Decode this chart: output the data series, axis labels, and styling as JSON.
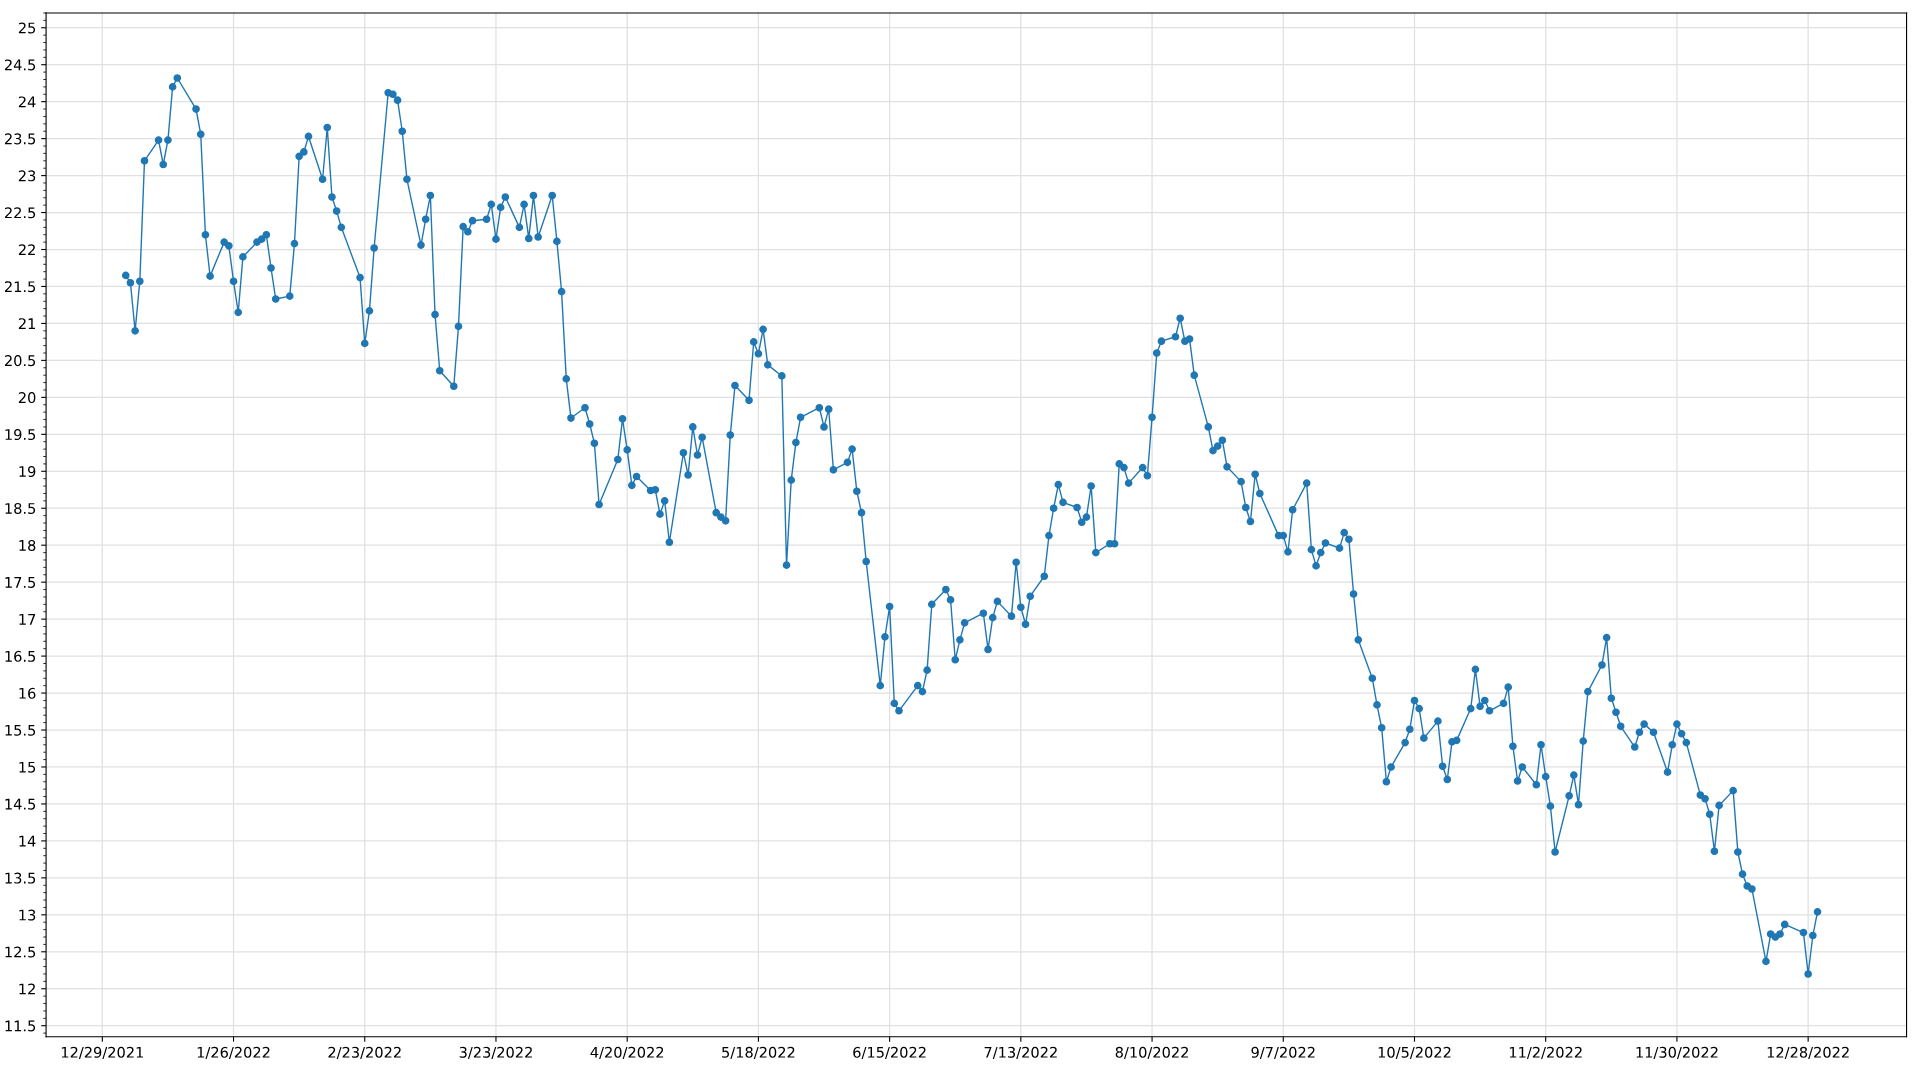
{
  "chart_data": {
    "type": "line",
    "marker": "circle",
    "line_style": "solid",
    "grid": true,
    "x": [
      "2022-01-03",
      "2022-01-04",
      "2022-01-05",
      "2022-01-06",
      "2022-01-07",
      "2022-01-10",
      "2022-01-11",
      "2022-01-12",
      "2022-01-13",
      "2022-01-14",
      "2022-01-18",
      "2022-01-19",
      "2022-01-20",
      "2022-01-21",
      "2022-01-24",
      "2022-01-25",
      "2022-01-26",
      "2022-01-27",
      "2022-01-28",
      "2022-01-31",
      "2022-02-01",
      "2022-02-02",
      "2022-02-03",
      "2022-02-04",
      "2022-02-07",
      "2022-02-08",
      "2022-02-09",
      "2022-02-10",
      "2022-02-11",
      "2022-02-14",
      "2022-02-15",
      "2022-02-16",
      "2022-02-17",
      "2022-02-18",
      "2022-02-22",
      "2022-02-23",
      "2022-02-24",
      "2022-02-25",
      "2022-02-28",
      "2022-03-01",
      "2022-03-02",
      "2022-03-03",
      "2022-03-04",
      "2022-03-07",
      "2022-03-08",
      "2022-03-09",
      "2022-03-10",
      "2022-03-11",
      "2022-03-14",
      "2022-03-15",
      "2022-03-16",
      "2022-03-17",
      "2022-03-18",
      "2022-03-21",
      "2022-03-22",
      "2022-03-23",
      "2022-03-24",
      "2022-03-25",
      "2022-03-28",
      "2022-03-29",
      "2022-03-30",
      "2022-03-31",
      "2022-04-01",
      "2022-04-04",
      "2022-04-05",
      "2022-04-06",
      "2022-04-07",
      "2022-04-08",
      "2022-04-11",
      "2022-04-12",
      "2022-04-13",
      "2022-04-14",
      "2022-04-18",
      "2022-04-19",
      "2022-04-20",
      "2022-04-21",
      "2022-04-22",
      "2022-04-25",
      "2022-04-26",
      "2022-04-27",
      "2022-04-28",
      "2022-04-29",
      "2022-05-02",
      "2022-05-03",
      "2022-05-04",
      "2022-05-05",
      "2022-05-06",
      "2022-05-09",
      "2022-05-10",
      "2022-05-11",
      "2022-05-12",
      "2022-05-13",
      "2022-05-16",
      "2022-05-17",
      "2022-05-18",
      "2022-05-19",
      "2022-05-20",
      "2022-05-23",
      "2022-05-24",
      "2022-05-25",
      "2022-05-26",
      "2022-05-27",
      "2022-05-31",
      "2022-06-01",
      "2022-06-02",
      "2022-06-03",
      "2022-06-06",
      "2022-06-07",
      "2022-06-08",
      "2022-06-09",
      "2022-06-10",
      "2022-06-13",
      "2022-06-14",
      "2022-06-15",
      "2022-06-16",
      "2022-06-17",
      "2022-06-21",
      "2022-06-22",
      "2022-06-23",
      "2022-06-24",
      "2022-06-27",
      "2022-06-28",
      "2022-06-29",
      "2022-06-30",
      "2022-07-01",
      "2022-07-05",
      "2022-07-06",
      "2022-07-07",
      "2022-07-08",
      "2022-07-11",
      "2022-07-12",
      "2022-07-13",
      "2022-07-14",
      "2022-07-15",
      "2022-07-18",
      "2022-07-19",
      "2022-07-20",
      "2022-07-21",
      "2022-07-22",
      "2022-07-25",
      "2022-07-26",
      "2022-07-27",
      "2022-07-28",
      "2022-07-29",
      "2022-08-01",
      "2022-08-02",
      "2022-08-03",
      "2022-08-04",
      "2022-08-05",
      "2022-08-08",
      "2022-08-09",
      "2022-08-10",
      "2022-08-11",
      "2022-08-12",
      "2022-08-15",
      "2022-08-16",
      "2022-08-17",
      "2022-08-18",
      "2022-08-19",
      "2022-08-22",
      "2022-08-23",
      "2022-08-24",
      "2022-08-25",
      "2022-08-26",
      "2022-08-29",
      "2022-08-30",
      "2022-08-31",
      "2022-09-01",
      "2022-09-02",
      "2022-09-06",
      "2022-09-07",
      "2022-09-08",
      "2022-09-09",
      "2022-09-12",
      "2022-09-13",
      "2022-09-14",
      "2022-09-15",
      "2022-09-16",
      "2022-09-19",
      "2022-09-20",
      "2022-09-21",
      "2022-09-22",
      "2022-09-23",
      "2022-09-26",
      "2022-09-27",
      "2022-09-28",
      "2022-09-29",
      "2022-09-30",
      "2022-10-03",
      "2022-10-04",
      "2022-10-05",
      "2022-10-06",
      "2022-10-07",
      "2022-10-10",
      "2022-10-11",
      "2022-10-12",
      "2022-10-13",
      "2022-10-14",
      "2022-10-17",
      "2022-10-18",
      "2022-10-19",
      "2022-10-20",
      "2022-10-21",
      "2022-10-24",
      "2022-10-25",
      "2022-10-26",
      "2022-10-27",
      "2022-10-28",
      "2022-10-31",
      "2022-11-01",
      "2022-11-02",
      "2022-11-03",
      "2022-11-04",
      "2022-11-07",
      "2022-11-08",
      "2022-11-09",
      "2022-11-10",
      "2022-11-11",
      "2022-11-14",
      "2022-11-15",
      "2022-11-16",
      "2022-11-17",
      "2022-11-18",
      "2022-11-21",
      "2022-11-22",
      "2022-11-23",
      "2022-11-25",
      "2022-11-28",
      "2022-11-29",
      "2022-11-30",
      "2022-12-01",
      "2022-12-02",
      "2022-12-05",
      "2022-12-06",
      "2022-12-07",
      "2022-12-08",
      "2022-12-09",
      "2022-12-12",
      "2022-12-13",
      "2022-12-14",
      "2022-12-15",
      "2022-12-16",
      "2022-12-19",
      "2022-12-20",
      "2022-12-21",
      "2022-12-22",
      "2022-12-23",
      "2022-12-27",
      "2022-12-28",
      "2022-12-29",
      "2022-12-30"
    ],
    "series": [
      {
        "color": "#1f77b4",
        "values": [
          21.65,
          21.55,
          20.9,
          21.57,
          23.2,
          23.48,
          23.15,
          23.48,
          24.2,
          24.32,
          23.9,
          23.56,
          22.2,
          21.64,
          22.1,
          22.05,
          21.57,
          21.15,
          21.9,
          22.1,
          22.14,
          22.2,
          21.75,
          21.33,
          21.37,
          22.08,
          23.26,
          23.32,
          23.53,
          22.95,
          23.65,
          22.71,
          22.52,
          22.3,
          21.62,
          20.73,
          21.17,
          22.02,
          24.12,
          24.1,
          24.02,
          23.6,
          22.95,
          22.06,
          22.41,
          22.73,
          21.12,
          20.36,
          20.15,
          20.96,
          22.31,
          22.24,
          22.39,
          22.41,
          22.61,
          22.14,
          22.57,
          22.71,
          22.3,
          22.61,
          22.15,
          22.73,
          22.17,
          22.73,
          22.11,
          21.43,
          20.25,
          19.72,
          19.86,
          19.64,
          19.38,
          18.55,
          19.16,
          19.71,
          19.29,
          18.81,
          18.93,
          18.74,
          18.75,
          18.42,
          18.6,
          18.04,
          19.25,
          18.95,
          19.6,
          19.22,
          19.46,
          18.44,
          18.38,
          18.33,
          19.49,
          20.16,
          19.96,
          20.75,
          20.59,
          20.92,
          20.44,
          20.29,
          17.73,
          18.88,
          19.39,
          19.73,
          19.86,
          19.6,
          19.84,
          19.02,
          19.12,
          19.3,
          18.73,
          18.44,
          17.78,
          16.1,
          16.76,
          17.17,
          15.86,
          15.76,
          16.1,
          16.02,
          16.31,
          17.2,
          17.4,
          17.26,
          16.45,
          16.72,
          16.95,
          17.08,
          16.59,
          17.02,
          17.24,
          17.04,
          17.77,
          17.16,
          16.93,
          17.31,
          17.58,
          18.13,
          18.5,
          18.82,
          18.58,
          18.51,
          18.31,
          18.38,
          18.8,
          17.9,
          18.02,
          18.02,
          19.1,
          19.05,
          18.84,
          19.05,
          18.94,
          19.73,
          20.6,
          20.76,
          20.82,
          21.07,
          20.76,
          20.79,
          20.3,
          19.6,
          19.28,
          19.34,
          19.42,
          19.06,
          18.86,
          18.51,
          18.32,
          18.96,
          18.7,
          18.13,
          18.13,
          17.91,
          18.48,
          18.84,
          17.94,
          17.72,
          17.9,
          18.03,
          17.96,
          18.17,
          18.08,
          17.34,
          16.72,
          16.2,
          15.84,
          15.53,
          14.8,
          15.0,
          15.33,
          15.51,
          15.9,
          15.79,
          15.39,
          15.62,
          15.01,
          14.83,
          15.34,
          15.36,
          15.79,
          16.32,
          15.82,
          15.9,
          15.76,
          15.86,
          16.08,
          15.28,
          14.81,
          15.0,
          14.76,
          15.3,
          14.87,
          14.47,
          13.85,
          14.61,
          14.89,
          14.49,
          15.35,
          16.02,
          16.38,
          16.75,
          15.93,
          15.74,
          15.55,
          15.27,
          15.47,
          15.58,
          15.47,
          14.93,
          15.3,
          15.58,
          15.45,
          15.33,
          14.62,
          14.57,
          14.36,
          13.86,
          14.48,
          14.68,
          13.85,
          13.55,
          13.39,
          13.35,
          12.37,
          12.74,
          12.7,
          12.74,
          12.87,
          12.76,
          12.2,
          12.72,
          13.04
        ]
      }
    ],
    "xlim": [
      "2021-12-17",
      "2023-01-18"
    ],
    "xticks": [
      {
        "value": "2021-12-29",
        "label": "12/29/2021"
      },
      {
        "value": "2022-01-26",
        "label": "1/26/2022"
      },
      {
        "value": "2022-02-23",
        "label": "2/23/2022"
      },
      {
        "value": "2022-03-23",
        "label": "3/23/2022"
      },
      {
        "value": "2022-04-20",
        "label": "4/20/2022"
      },
      {
        "value": "2022-05-18",
        "label": "5/18/2022"
      },
      {
        "value": "2022-06-15",
        "label": "6/15/2022"
      },
      {
        "value": "2022-07-13",
        "label": "7/13/2022"
      },
      {
        "value": "2022-08-10",
        "label": "8/10/2022"
      },
      {
        "value": "2022-09-07",
        "label": "9/7/2022"
      },
      {
        "value": "2022-10-05",
        "label": "10/5/2022"
      },
      {
        "value": "2022-11-02",
        "label": "11/2/2022"
      },
      {
        "value": "2022-11-30",
        "label": "11/30/2022"
      },
      {
        "value": "2022-12-28",
        "label": "12/28/2022"
      }
    ],
    "ylim": [
      11.35,
      25.2
    ],
    "yticks": [
      11.5,
      12,
      12.5,
      13,
      13.5,
      14,
      14.5,
      15,
      15.5,
      16,
      16.5,
      17,
      17.5,
      18,
      18.5,
      19,
      19.5,
      20,
      20.5,
      21,
      21.5,
      22,
      22.5,
      23,
      23.5,
      24,
      24.5,
      25
    ]
  }
}
